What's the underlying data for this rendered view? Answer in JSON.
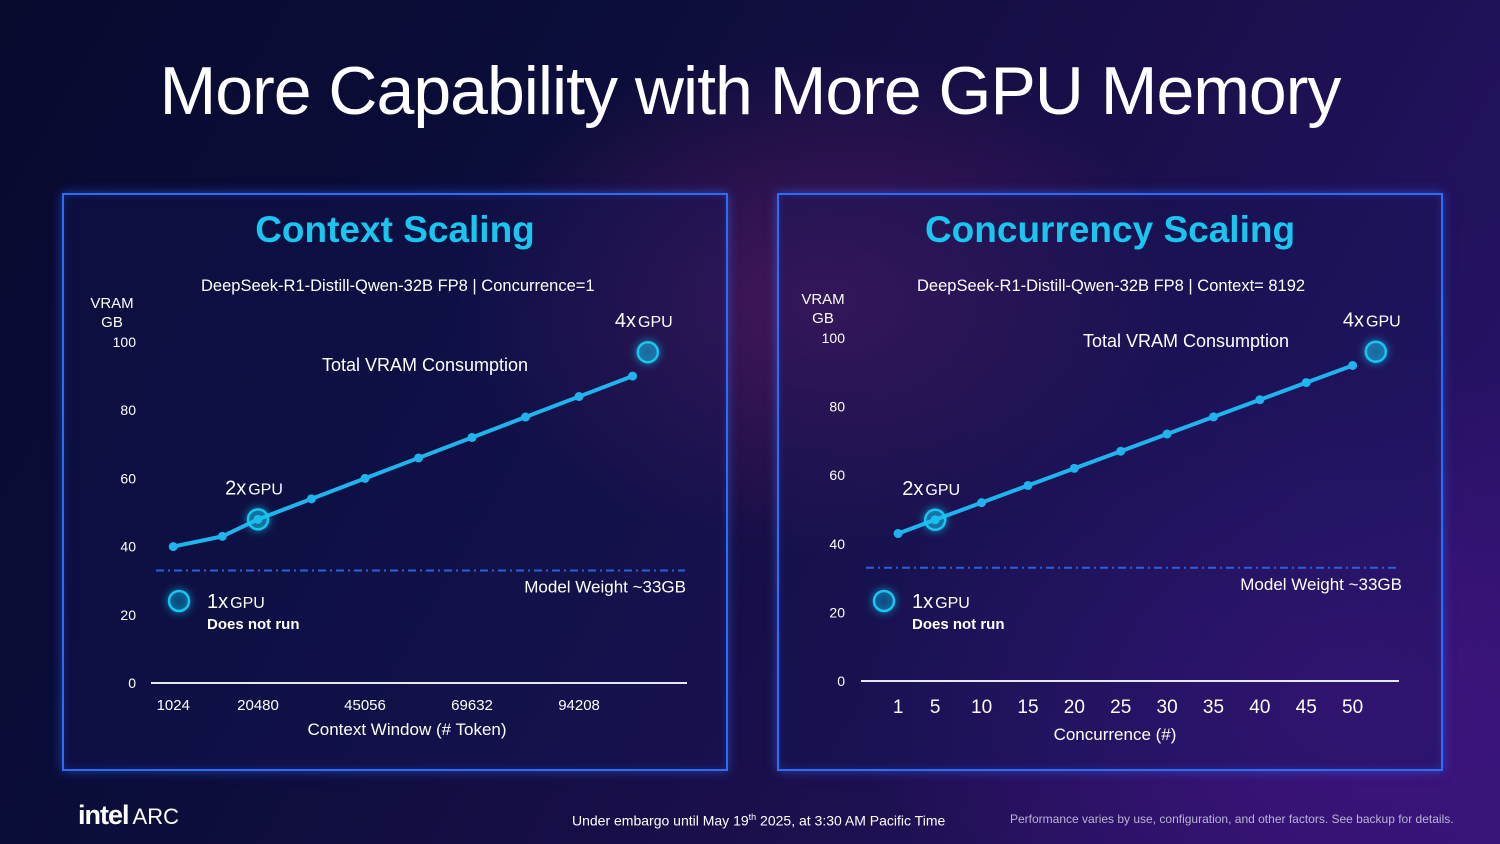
{
  "title": "More Capability with More GPU Memory",
  "colors": {
    "accent": "#19c6f0",
    "line": "#1fb4ee",
    "frame": "#2e6cf5",
    "dash": "#2b5fe0"
  },
  "chart_data": [
    {
      "type": "line",
      "title": "Context Scaling",
      "subtitle": "DeepSeek-R1-Distill-Qwen-32B FP8  |  Concurrence=1",
      "series_label": "Total VRAM Consumption",
      "ylabel_line1": "VRAM",
      "ylabel_line2": "GB",
      "xlabel": "Context Window (# Token)",
      "ylim": [
        0,
        100
      ],
      "yticks": [
        0,
        20,
        40,
        60,
        80,
        100
      ],
      "xticks": [
        "1024",
        "20480",
        "45056",
        "69632",
        "94208"
      ],
      "x": [
        1024,
        12288,
        20480,
        32768,
        45056,
        57344,
        69632,
        81920,
        94208,
        106496
      ],
      "xlim": [
        -4096,
        119000
      ],
      "y": [
        40,
        43,
        48,
        54,
        60,
        66,
        72,
        78,
        84,
        90
      ],
      "reference_line": {
        "value": 33,
        "label": "Model Weight ~33GB"
      },
      "annotations": [
        {
          "label_num": "2x",
          "label_unit": "GPU",
          "x": 20480,
          "y": 48
        },
        {
          "label_num": "4x",
          "label_unit": "GPU",
          "x": 110000,
          "y": 97
        }
      ],
      "legend_note": {
        "num": "1x",
        "unit": "GPU",
        "note": "Does not run"
      }
    },
    {
      "type": "line",
      "title": "Concurrency Scaling",
      "subtitle": "DeepSeek-R1-Distill-Qwen-32B FP8  |  Context= 8192",
      "series_label": "Total VRAM Consumption",
      "ylabel_line1": "VRAM",
      "ylabel_line2": "GB",
      "xlabel": "Concurrence (#)",
      "ylim": [
        0,
        100
      ],
      "yticks": [
        0,
        20,
        40,
        60,
        80,
        100
      ],
      "xticks": [
        "1",
        "5",
        "10",
        "15",
        "20",
        "25",
        "30",
        "35",
        "40",
        "45",
        "50"
      ],
      "x": [
        1,
        5,
        10,
        15,
        20,
        25,
        30,
        35,
        40,
        45,
        50
      ],
      "xlim": [
        -3,
        55
      ],
      "y": [
        43,
        47,
        52,
        57,
        62,
        67,
        72,
        77,
        82,
        87,
        92
      ],
      "reference_line": {
        "value": 33,
        "label": "Model Weight ~33GB"
      },
      "annotations": [
        {
          "label_num": "2x",
          "label_unit": "GPU",
          "x": 5,
          "y": 47
        },
        {
          "label_num": "4x",
          "label_unit": "GPU",
          "x": 52.5,
          "y": 96
        }
      ],
      "legend_note": {
        "num": "1x",
        "unit": "GPU",
        "note": "Does not run"
      }
    }
  ],
  "footer": {
    "logo_brand": "intel",
    "logo_sub": "ARC",
    "embargo_pre": "Under embargo until May 19",
    "embargo_sup": "th",
    "embargo_post": " 2025, at 3:30 AM Pacific Time",
    "disclaimer": "Performance varies by use, configuration, and other factors. See backup for details."
  }
}
